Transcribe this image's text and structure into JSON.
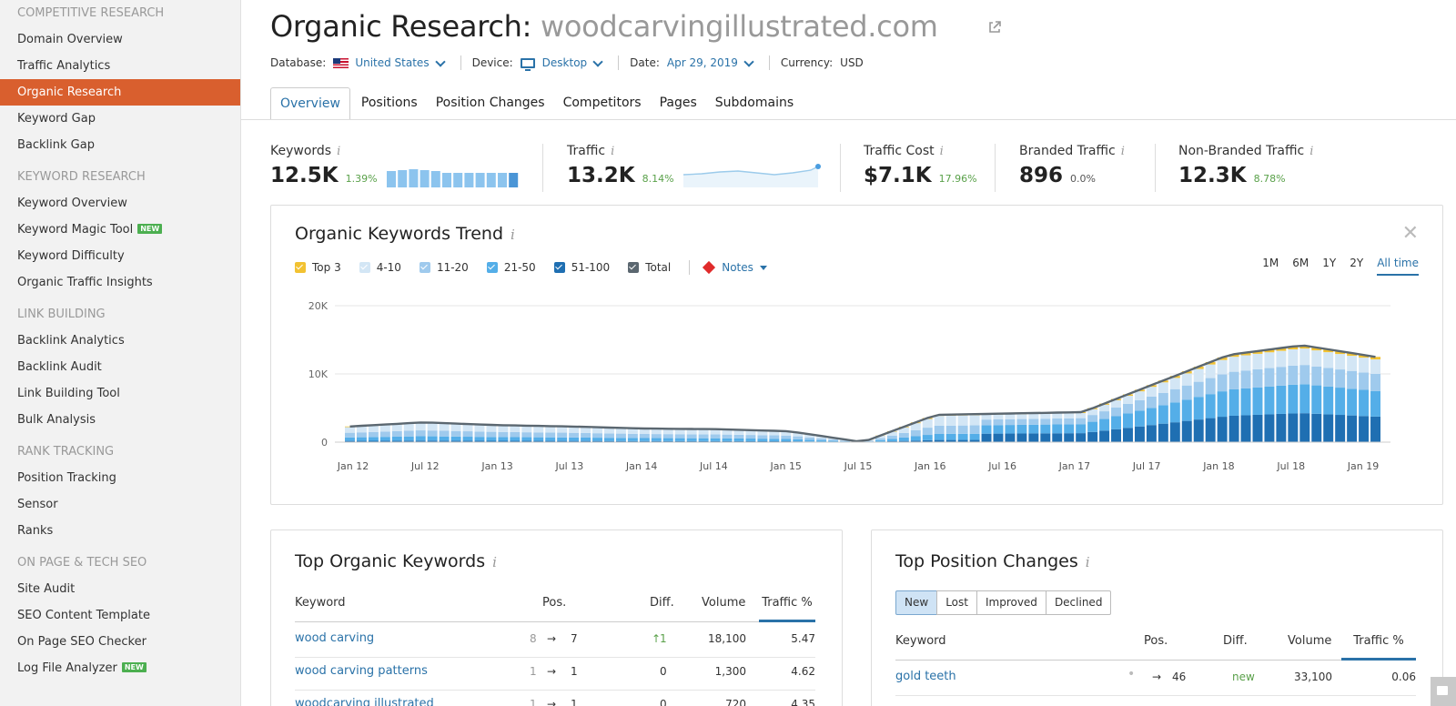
{
  "sidebar": {
    "competitive_title": "COMPETITIVE RESEARCH",
    "competitive": [
      "Domain Overview",
      "Traffic Analytics",
      "Organic Research",
      "Keyword Gap",
      "Backlink Gap"
    ],
    "keyword_title": "KEYWORD RESEARCH",
    "keyword": [
      "Keyword Overview",
      "Keyword Magic Tool",
      "Keyword Difficulty",
      "Organic Traffic Insights"
    ],
    "link_title": "LINK BUILDING",
    "link": [
      "Backlink Analytics",
      "Backlink Audit",
      "Link Building Tool",
      "Bulk Analysis"
    ],
    "rank_title": "RANK TRACKING",
    "rank": [
      "Position Tracking",
      "Sensor",
      "Ranks"
    ],
    "onpage_title": "ON PAGE & TECH SEO",
    "onpage": [
      "Site Audit",
      "SEO Content Template",
      "On Page SEO Checker",
      "Log File Analyzer"
    ],
    "new_badge": "NEW"
  },
  "header": {
    "title": "Organic Research:",
    "domain": "woodcarvingillustrated.com",
    "database_label": "Database:",
    "database_value": "United States",
    "device_label": "Device:",
    "device_value": "Desktop",
    "date_label": "Date:",
    "date_value": "Apr 29, 2019",
    "currency_label": "Currency:",
    "currency_value": "USD"
  },
  "tabs": [
    "Overview",
    "Positions",
    "Position Changes",
    "Competitors",
    "Pages",
    "Subdomains"
  ],
  "kpis": {
    "keywords": {
      "label": "Keywords",
      "value": "12.5K",
      "change": "1.39%"
    },
    "traffic": {
      "label": "Traffic",
      "value": "13.2K",
      "change": "8.14%"
    },
    "traffic_cost": {
      "label": "Traffic Cost",
      "value": "$7.1K",
      "change": "17.96%"
    },
    "branded": {
      "label": "Branded Traffic",
      "value": "896",
      "change": "0.0%"
    },
    "non_branded": {
      "label": "Non-Branded Traffic",
      "value": "12.3K",
      "change": "8.78%"
    },
    "info": "i"
  },
  "trend": {
    "title": "Organic Keywords Trend",
    "close": "✕",
    "legend": [
      {
        "label": "Top 3",
        "color": "#f2c232"
      },
      {
        "label": "4-10",
        "color": "#d3e6f5"
      },
      {
        "label": "11-20",
        "color": "#9fcaed"
      },
      {
        "label": "21-50",
        "color": "#54aee8"
      },
      {
        "label": "51-100",
        "color": "#1f6fb2"
      },
      {
        "label": "Total",
        "color": "#5b6770"
      }
    ],
    "notes_label": "Notes",
    "periods": [
      "1M",
      "6M",
      "1Y",
      "2Y",
      "All time"
    ]
  },
  "chart_data": {
    "type": "bar",
    "title": "Organic Keywords Trend",
    "x": [
      "Jan 12",
      "Jul 12",
      "Jan 13",
      "Jul 13",
      "Jan 14",
      "Jul 14",
      "Jan 15",
      "Jul 15",
      "Jan 16",
      "Jul 16",
      "Jan 17",
      "Jul 17",
      "Jan 18",
      "Jul 18",
      "Jan 19"
    ],
    "y_ticks": [
      "0",
      "10K",
      "20K"
    ],
    "ylim": [
      0,
      20000
    ],
    "total": [
      2300,
      2900,
      2500,
      2300,
      2000,
      1900,
      1600,
      0,
      4000,
      4200,
      4400,
      8600,
      12800,
      14200,
      12500
    ]
  },
  "top_keywords": {
    "title": "Top Organic Keywords",
    "columns": [
      "Keyword",
      "Pos.",
      "Diff.",
      "Volume",
      "Traffic %"
    ],
    "rows": [
      {
        "keyword": "wood carving",
        "prev": "8",
        "pos": "7",
        "diff": "1",
        "volume": "18,100",
        "traffic": "5.47"
      },
      {
        "keyword": "wood carving patterns",
        "prev": "1",
        "pos": "1",
        "diff": "0",
        "volume": "1,300",
        "traffic": "4.62"
      },
      {
        "keyword": "woodcarving illustrated",
        "prev": "1",
        "pos": "1",
        "diff": "0",
        "volume": "720",
        "traffic": "4.35"
      }
    ]
  },
  "top_changes": {
    "title": "Top Position Changes",
    "segments": [
      "New",
      "Lost",
      "Improved",
      "Declined"
    ],
    "columns": [
      "Keyword",
      "Pos.",
      "Diff.",
      "Volume",
      "Traffic %"
    ],
    "rows": [
      {
        "keyword": "gold teeth",
        "pos": "46",
        "diff": "new",
        "volume": "33,100",
        "traffic": "0.06"
      }
    ]
  }
}
